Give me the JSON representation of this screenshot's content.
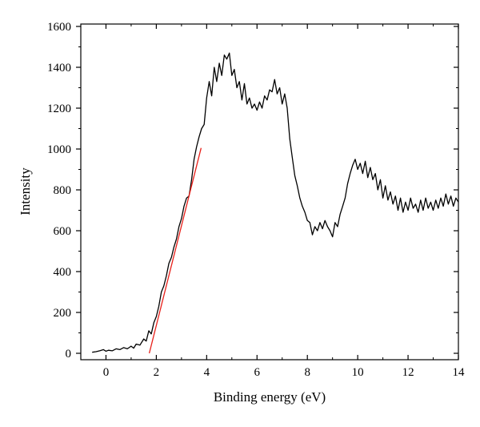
{
  "chart_data": {
    "type": "line",
    "title": "",
    "xlabel": "Binding energy (eV)",
    "ylabel": "Intensity",
    "xlim": [
      -1,
      14
    ],
    "ylim": [
      0,
      1600
    ],
    "grid": false,
    "x_ticks": [
      "0",
      "2",
      "4",
      "6",
      "8",
      "10",
      "12",
      "14"
    ],
    "x_tick_values": [
      0,
      2,
      4,
      6,
      8,
      10,
      12,
      14
    ],
    "y_ticks": [
      "0",
      "200",
      "400",
      "600",
      "800",
      "1000",
      "1200",
      "1400",
      "1600"
    ],
    "y_tick_values": [
      0,
      200,
      400,
      600,
      800,
      1000,
      1200,
      1400,
      1600
    ],
    "series": [
      {
        "color": "#000000",
        "points": [
          [
            -0.55,
            5
          ],
          [
            -0.4,
            8
          ],
          [
            -0.25,
            12
          ],
          [
            -0.1,
            18
          ],
          [
            0.0,
            10
          ],
          [
            0.1,
            15
          ],
          [
            0.25,
            12
          ],
          [
            0.4,
            22
          ],
          [
            0.55,
            18
          ],
          [
            0.7,
            28
          ],
          [
            0.85,
            22
          ],
          [
            1.0,
            35
          ],
          [
            1.1,
            25
          ],
          [
            1.2,
            45
          ],
          [
            1.35,
            40
          ],
          [
            1.5,
            70
          ],
          [
            1.6,
            60
          ],
          [
            1.7,
            110
          ],
          [
            1.8,
            95
          ],
          [
            1.9,
            150
          ],
          [
            2.0,
            180
          ],
          [
            2.1,
            230
          ],
          [
            2.2,
            300
          ],
          [
            2.3,
            330
          ],
          [
            2.4,
            380
          ],
          [
            2.5,
            440
          ],
          [
            2.6,
            470
          ],
          [
            2.7,
            520
          ],
          [
            2.8,
            560
          ],
          [
            2.9,
            620
          ],
          [
            3.0,
            660
          ],
          [
            3.1,
            720
          ],
          [
            3.2,
            760
          ],
          [
            3.3,
            770
          ],
          [
            3.4,
            850
          ],
          [
            3.5,
            950
          ],
          [
            3.6,
            1010
          ],
          [
            3.7,
            1060
          ],
          [
            3.8,
            1100
          ],
          [
            3.9,
            1120
          ],
          [
            4.0,
            1250
          ],
          [
            4.1,
            1330
          ],
          [
            4.2,
            1260
          ],
          [
            4.3,
            1400
          ],
          [
            4.4,
            1330
          ],
          [
            4.5,
            1420
          ],
          [
            4.6,
            1360
          ],
          [
            4.7,
            1460
          ],
          [
            4.8,
            1440
          ],
          [
            4.9,
            1470
          ],
          [
            5.0,
            1360
          ],
          [
            5.1,
            1390
          ],
          [
            5.2,
            1300
          ],
          [
            5.3,
            1330
          ],
          [
            5.4,
            1240
          ],
          [
            5.5,
            1320
          ],
          [
            5.6,
            1220
          ],
          [
            5.7,
            1250
          ],
          [
            5.8,
            1200
          ],
          [
            5.9,
            1220
          ],
          [
            6.0,
            1190
          ],
          [
            6.1,
            1230
          ],
          [
            6.2,
            1200
          ],
          [
            6.3,
            1260
          ],
          [
            6.4,
            1240
          ],
          [
            6.5,
            1290
          ],
          [
            6.6,
            1280
          ],
          [
            6.7,
            1340
          ],
          [
            6.8,
            1270
          ],
          [
            6.9,
            1300
          ],
          [
            7.0,
            1220
          ],
          [
            7.1,
            1270
          ],
          [
            7.2,
            1200
          ],
          [
            7.3,
            1050
          ],
          [
            7.4,
            960
          ],
          [
            7.5,
            870
          ],
          [
            7.6,
            820
          ],
          [
            7.7,
            760
          ],
          [
            7.8,
            720
          ],
          [
            7.9,
            690
          ],
          [
            8.0,
            650
          ],
          [
            8.1,
            640
          ],
          [
            8.2,
            580
          ],
          [
            8.3,
            620
          ],
          [
            8.4,
            600
          ],
          [
            8.5,
            640
          ],
          [
            8.6,
            610
          ],
          [
            8.7,
            650
          ],
          [
            8.8,
            620
          ],
          [
            8.9,
            600
          ],
          [
            9.0,
            570
          ],
          [
            9.1,
            640
          ],
          [
            9.2,
            620
          ],
          [
            9.3,
            680
          ],
          [
            9.4,
            720
          ],
          [
            9.5,
            760
          ],
          [
            9.6,
            830
          ],
          [
            9.7,
            880
          ],
          [
            9.8,
            920
          ],
          [
            9.9,
            950
          ],
          [
            10.0,
            900
          ],
          [
            10.1,
            930
          ],
          [
            10.2,
            880
          ],
          [
            10.3,
            940
          ],
          [
            10.4,
            860
          ],
          [
            10.5,
            910
          ],
          [
            10.6,
            850
          ],
          [
            10.7,
            880
          ],
          [
            10.8,
            800
          ],
          [
            10.9,
            850
          ],
          [
            11.0,
            760
          ],
          [
            11.1,
            820
          ],
          [
            11.2,
            750
          ],
          [
            11.3,
            790
          ],
          [
            11.4,
            730
          ],
          [
            11.5,
            770
          ],
          [
            11.6,
            700
          ],
          [
            11.7,
            760
          ],
          [
            11.8,
            690
          ],
          [
            11.9,
            740
          ],
          [
            12.0,
            700
          ],
          [
            12.1,
            760
          ],
          [
            12.2,
            710
          ],
          [
            12.3,
            730
          ],
          [
            12.4,
            690
          ],
          [
            12.5,
            750
          ],
          [
            12.6,
            700
          ],
          [
            12.7,
            760
          ],
          [
            12.8,
            710
          ],
          [
            12.9,
            740
          ],
          [
            13.0,
            700
          ],
          [
            13.1,
            750
          ],
          [
            13.2,
            710
          ],
          [
            13.3,
            760
          ],
          [
            13.4,
            720
          ],
          [
            13.5,
            780
          ],
          [
            13.6,
            730
          ],
          [
            13.7,
            770
          ],
          [
            13.8,
            720
          ],
          [
            13.9,
            760
          ],
          [
            14.0,
            740
          ]
        ]
      },
      {
        "color": "#e8201a",
        "points": [
          [
            1.72,
            0
          ],
          [
            3.78,
            1005
          ]
        ]
      }
    ]
  }
}
